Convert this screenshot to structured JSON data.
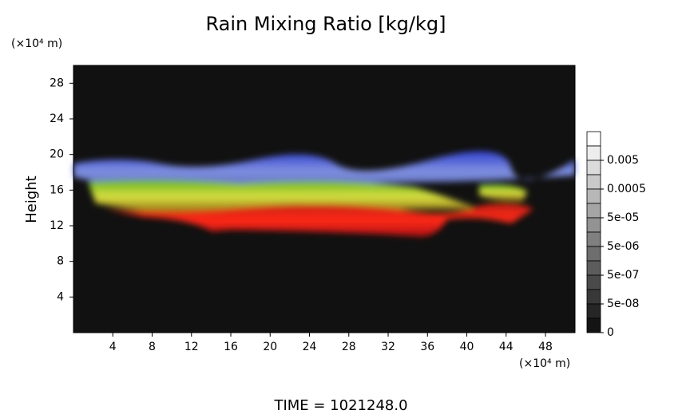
{
  "chart_data": {
    "type": "heatmap",
    "title": "Rain Mixing Ratio [kg/kg]",
    "ylabel": "Height",
    "yunit": "(×10⁴ m)",
    "xunit": "(×10⁴ m)",
    "xlim": [
      0,
      51
    ],
    "xticks": [
      4,
      8,
      12,
      16,
      20,
      24,
      28,
      32,
      36,
      40,
      44,
      48
    ],
    "ylim": [
      0,
      30
    ],
    "yticks": [
      4,
      8,
      12,
      16,
      20,
      24,
      28
    ],
    "colorbar": [
      0.005,
      0.0005,
      {
        "value": 5e-05,
        "label": "5e-05"
      },
      {
        "value": 5e-06,
        "label": "5e-06"
      },
      {
        "value": 5e-07,
        "label": "5e-07"
      },
      {
        "value": 5e-08,
        "label": "5e-08"
      },
      0
    ],
    "footer": "TIME = 1021248.0"
  }
}
